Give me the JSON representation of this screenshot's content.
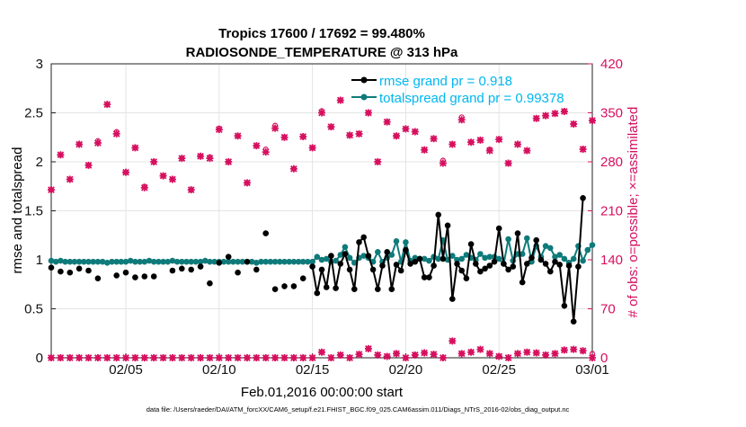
{
  "chart_data": {
    "type": "line",
    "title": "Tropics 17600 / 17692 = 99.480%",
    "subtitle": "RADIOSONDE_TEMPERATURE @ 313 hPa",
    "xlabel": "Feb.01,2016 00:00:00 start",
    "ylabel": "rmse and totalspread",
    "ylabel_right": "# of obs: o=possible; ×=assimilated",
    "footnote": "data file: /Users/raeder/DAI/ATM_forcXX/CAM6_setup/f.e21.FHIST_BGC.f09_025.CAM6assim.011/Diags_NTrS_2016-02/obs_diag_output.nc",
    "x_range": [
      1,
      30
    ],
    "x_tick_values": [
      5,
      10,
      15,
      20,
      25,
      30
    ],
    "x_tick_labels": [
      "02/05",
      "02/10",
      "02/15",
      "02/20",
      "02/25",
      "03/01"
    ],
    "ylim": [
      0,
      3
    ],
    "y_ticks": [
      "0",
      "0.5",
      "1",
      "1.5",
      "2",
      "2.5",
      "3"
    ],
    "ylim_right": [
      0,
      420
    ],
    "y_ticks_right": [
      "0",
      "70",
      "140",
      "210",
      "280",
      "350",
      "420"
    ],
    "grid": true,
    "legend_position": "top-right",
    "legend": [
      "rmse grand pr = 0.918",
      "totalspread grand pr = 0.99378"
    ],
    "colors": {
      "rmse": "#000000",
      "spread": "#0f7a7a",
      "obs": "#d6105f",
      "legend_text": "#00b6f0"
    },
    "rmse_x": [
      1,
      1.25,
      1.5,
      1.75,
      2,
      2.25,
      2.5,
      2.75,
      3,
      3.25,
      3.5,
      3.75,
      4,
      4.25,
      4.5,
      4.75,
      5,
      5.25,
      5.5,
      5.75,
      6,
      6.25,
      6.5,
      6.75,
      7,
      7.25,
      7.5,
      7.75,
      8,
      8.25,
      8.5,
      8.75,
      9,
      9.25,
      9.5,
      9.75,
      10,
      10.25,
      10.5,
      10.75,
      11,
      11.25,
      11.5,
      11.75,
      12,
      12.25,
      12.5,
      12.75,
      13,
      13.25,
      13.5,
      13.75,
      14,
      14.25,
      14.5,
      14.75,
      15,
      15.25,
      15.5,
      15.75,
      16,
      16.25,
      16.5,
      16.75,
      17,
      17.25,
      17.5,
      17.75,
      18,
      18.25,
      18.5,
      18.75,
      19,
      19.25,
      19.5,
      19.75,
      20,
      20.25,
      20.5,
      20.75,
      21,
      21.25,
      21.5,
      21.75,
      22,
      22.25,
      22.5,
      22.75,
      23,
      23.25,
      23.5,
      23.75,
      24,
      24.25,
      24.5,
      24.75,
      25,
      25.25,
      25.5,
      25.75,
      26,
      26.25,
      26.5,
      26.75,
      27,
      27.25,
      27.5,
      27.75,
      28,
      28.25,
      28.5,
      28.75,
      29,
      29.25,
      29.5,
      29.75,
      30
    ],
    "rmse_values": [
      0.92,
      null,
      0.88,
      null,
      0.87,
      null,
      0.91,
      null,
      0.89,
      null,
      0.81,
      null,
      null,
      null,
      0.84,
      null,
      0.87,
      null,
      0.82,
      null,
      0.83,
      null,
      0.83,
      null,
      null,
      null,
      0.89,
      null,
      0.91,
      null,
      0.9,
      null,
      0.93,
      null,
      0.76,
      null,
      0.97,
      null,
      1.03,
      null,
      0.87,
      null,
      0.98,
      null,
      0.9,
      null,
      1.27,
      null,
      0.7,
      null,
      0.73,
      null,
      0.73,
      null,
      0.81,
      null,
      0.93,
      0.66,
      0.9,
      0.72,
      1.04,
      0.71,
      0.96,
      1.06,
      0.9,
      0.7,
      1.18,
      1.23,
      1.04,
      0.9,
      0.7,
      0.94,
      1.08,
      0.7,
      0.95,
      0.89,
      1.1,
      0.96,
      0.98,
      1.01,
      0.82,
      0.82,
      0.94,
      1.46,
      1.01,
      1.35,
      0.6,
      0.96,
      0.89,
      0.81,
      1.16,
      0.96,
      0.88,
      0.91,
      0.94,
      0.98,
      1.32,
      0.96,
      0.9,
      0.93,
      1.27,
      0.77,
      0.96,
      1.02,
      1.2,
      1.0,
      0.96,
      0.88,
      0.98,
      0.95,
      0.53,
      0.94,
      0.37,
      0.93,
      1.63
    ],
    "spread_x": [
      1,
      1.25,
      1.5,
      1.75,
      2,
      2.25,
      2.5,
      2.75,
      3,
      3.25,
      3.5,
      3.75,
      4,
      4.25,
      4.5,
      4.75,
      5,
      5.25,
      5.5,
      5.75,
      6,
      6.25,
      6.5,
      6.75,
      7,
      7.25,
      7.5,
      7.75,
      8,
      8.25,
      8.5,
      8.75,
      9,
      9.25,
      9.5,
      9.75,
      10,
      10.25,
      10.5,
      10.75,
      11,
      11.25,
      11.5,
      11.75,
      12,
      12.25,
      12.5,
      12.75,
      13,
      13.25,
      13.5,
      13.75,
      14,
      14.25,
      14.5,
      14.75,
      15,
      15.25,
      15.5,
      15.75,
      16,
      16.25,
      16.5,
      16.75,
      17,
      17.25,
      17.5,
      17.75,
      18,
      18.25,
      18.5,
      18.75,
      19,
      19.25,
      19.5,
      19.75,
      20,
      20.25,
      20.5,
      20.75,
      21,
      21.25,
      21.5,
      21.75,
      22,
      22.25,
      22.5,
      22.75,
      23,
      23.25,
      23.5,
      23.75,
      24,
      24.25,
      24.5,
      24.75,
      25,
      25.25,
      25.5,
      25.75,
      26,
      26.25,
      26.5,
      26.75,
      27,
      27.25,
      27.5,
      27.75,
      28,
      28.25,
      28.5,
      28.75,
      29,
      29.25,
      29.5,
      29.75,
      30
    ],
    "spread_values": [
      0.99,
      0.98,
      0.99,
      0.98,
      0.98,
      0.98,
      0.98,
      0.98,
      0.98,
      0.98,
      0.98,
      0.98,
      0.97,
      0.98,
      0.98,
      0.98,
      0.98,
      0.99,
      0.98,
      0.98,
      0.98,
      0.99,
      0.98,
      0.98,
      0.98,
      0.98,
      0.99,
      0.98,
      0.98,
      0.98,
      0.98,
      0.98,
      0.98,
      0.99,
      0.98,
      0.98,
      0.98,
      0.98,
      0.98,
      0.98,
      0.98,
      0.98,
      0.98,
      0.98,
      0.97,
      0.98,
      0.98,
      0.98,
      0.98,
      0.98,
      0.98,
      0.98,
      0.98,
      0.98,
      0.98,
      0.98,
      0.98,
      1.03,
      1.0,
      1.01,
      0.98,
      0.99,
      1.05,
      1.13,
      1.02,
      0.97,
      1.02,
      1.04,
      1.02,
      0.98,
      1.08,
      0.98,
      1.02,
      1.05,
      1.19,
      0.98,
      1.18,
      0.99,
      1.02,
      1.01,
      1.01,
      0.99,
      1.03,
      1.01,
      1.2,
      1.0,
      1.04,
      1.0,
      1.01,
      1.05,
      1.02,
      1.0,
      1.06,
      1.02,
      1.03,
      1.03,
      1.01,
      0.96,
      1.21,
      0.99,
      1.06,
      1.06,
      1.22,
      0.98,
      1.14,
      1.03,
      1.14,
      1.12,
      1.03,
      1.05,
      1.01,
      0.97,
      1.01,
      1.14,
      0.99,
      1.1,
      1.15
    ],
    "obs_x": [
      1,
      1.5,
      2,
      2.5,
      3,
      3.5,
      4,
      4.5,
      5,
      5.5,
      6,
      6.5,
      7,
      7.5,
      8,
      8.5,
      9,
      9.5,
      10,
      10.5,
      11,
      11.5,
      12,
      12.5,
      13,
      13.5,
      14,
      14.5,
      15,
      15.5,
      16,
      16.5,
      17,
      17.5,
      18,
      18.5,
      19,
      19.5,
      20,
      20.5,
      21,
      21.5,
      22,
      22.5,
      23,
      23.5,
      24,
      24.5,
      25,
      25.5,
      26,
      26.5,
      27,
      27.5,
      28,
      28.5,
      29,
      29.5,
      30
    ],
    "obs_possible": [
      240,
      290,
      255,
      305,
      275,
      310,
      362,
      323,
      265,
      300,
      245,
      280,
      260,
      255,
      285,
      240,
      288,
      287,
      328,
      280,
      317,
      250,
      303,
      298,
      332,
      315,
      270,
      316,
      300,
      353,
      330,
      368,
      318,
      320,
      350,
      280,
      337,
      317,
      327,
      323,
      297,
      313,
      282,
      305,
      344,
      308,
      311,
      298,
      312,
      278,
      305,
      296,
      342,
      346,
      349,
      352,
      334,
      298,
      339
    ],
    "obs_assimilated": [
      240,
      290,
      255,
      305,
      275,
      307,
      362,
      320,
      265,
      300,
      243,
      280,
      260,
      255,
      285,
      240,
      288,
      285,
      326,
      280,
      317,
      250,
      303,
      294,
      328,
      315,
      270,
      316,
      300,
      350,
      330,
      368,
      318,
      320,
      350,
      280,
      337,
      317,
      327,
      323,
      297,
      313,
      278,
      305,
      340,
      308,
      311,
      296,
      312,
      278,
      305,
      296,
      342,
      346,
      349,
      352,
      334,
      298,
      339
    ],
    "obs_possible_low": [
      0,
      0,
      0,
      0,
      0,
      0,
      0,
      0,
      0,
      0,
      0,
      0,
      0,
      0,
      0,
      0,
      0,
      0,
      0,
      0,
      0,
      0,
      0,
      0,
      0,
      0,
      0,
      0,
      0,
      8,
      0,
      4,
      0,
      5,
      13,
      4,
      2,
      6,
      0,
      4,
      7,
      5,
      0,
      24,
      6,
      8,
      12,
      6,
      2,
      0,
      6,
      8,
      7,
      4,
      6,
      11,
      12,
      10,
      6
    ],
    "obs_assimilated_low": [
      0,
      0,
      0,
      0,
      0,
      0,
      0,
      0,
      0,
      0,
      0,
      0,
      0,
      0,
      0,
      0,
      0,
      0,
      0,
      0,
      0,
      0,
      0,
      0,
      0,
      0,
      0,
      0,
      0,
      8,
      0,
      4,
      0,
      5,
      13,
      4,
      2,
      6,
      0,
      4,
      7,
      5,
      0,
      24,
      6,
      8,
      12,
      6,
      2,
      0,
      6,
      8,
      7,
      4,
      6,
      11,
      12,
      10,
      0
    ]
  }
}
